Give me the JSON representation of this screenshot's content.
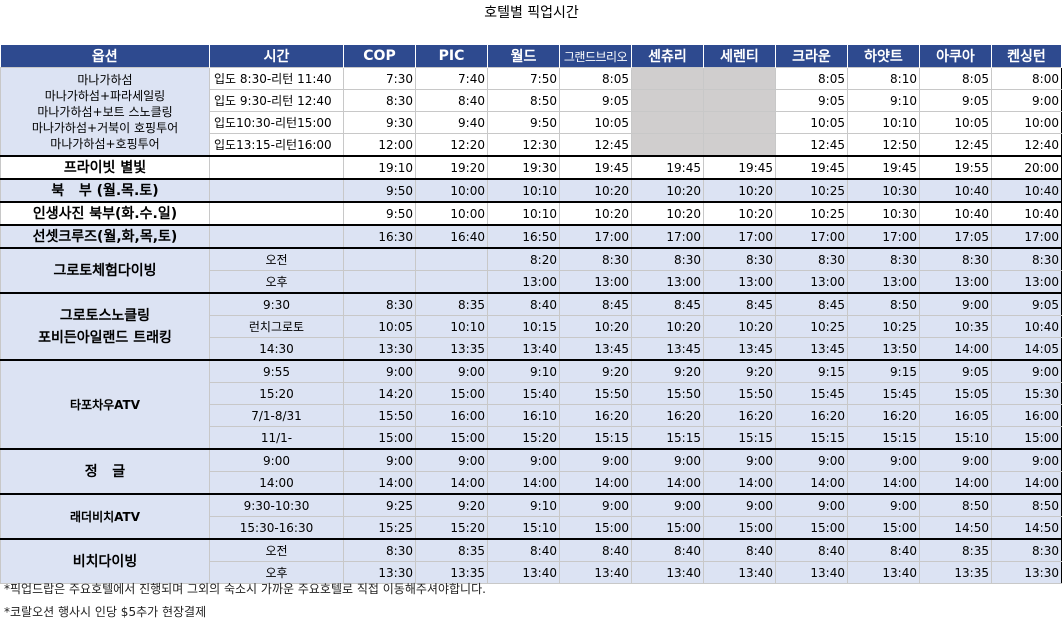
{
  "title": "호텔별 픽업시간",
  "headers": [
    "옵션",
    "시간",
    "COP",
    "PIC",
    "월드",
    "그랜드브리오",
    "센츄리",
    "세렌티",
    "크라운",
    "하얏트",
    "아쿠아",
    "켄싱턴"
  ],
  "mana": {
    "options": [
      "마나가하섬",
      "마나가하섬+파라세일링",
      "마나가하섬+보트 스노클링",
      "마나가하섬+거북이 호핑투어",
      "마나가하섬+호핑투어"
    ],
    "rows": [
      {
        "time": "입도 8:30-리턴 11:40",
        "vals": [
          "7:30",
          "7:40",
          "7:50",
          "8:05",
          "",
          "",
          "8:05",
          "8:10",
          "8:05",
          "8:00"
        ]
      },
      {
        "time": "입도 9:30-리턴 12:40",
        "vals": [
          "8:30",
          "8:40",
          "8:50",
          "9:05",
          "",
          "",
          "9:05",
          "9:10",
          "9:05",
          "9:00"
        ]
      },
      {
        "time": "입도10:30-리턴15:00",
        "vals": [
          "9:30",
          "9:40",
          "9:50",
          "10:05",
          "",
          "",
          "10:05",
          "10:10",
          "10:05",
          "10:00"
        ]
      },
      {
        "time": "입도13:15-리턴16:00",
        "vals": [
          "12:00",
          "12:20",
          "12:30",
          "12:45",
          "",
          "",
          "12:45",
          "12:50",
          "12:45",
          "12:40"
        ]
      }
    ]
  },
  "groups": [
    {
      "option": "프라이빗 별빛",
      "rows": [
        {
          "time": "",
          "vals": [
            "19:10",
            "19:20",
            "19:30",
            "19:45",
            "19:45",
            "19:45",
            "19:45",
            "19:45",
            "19:55",
            "20:00"
          ]
        }
      ]
    },
    {
      "option": "북   부 (월.목.토)",
      "rows": [
        {
          "time": "",
          "vals": [
            "9:50",
            "10:00",
            "10:10",
            "10:20",
            "10:20",
            "10:20",
            "10:25",
            "10:30",
            "10:40",
            "10:40"
          ]
        }
      ]
    },
    {
      "option": "인생사진 북부(화.수.일)",
      "rows": [
        {
          "time": "",
          "vals": [
            "9:50",
            "10:00",
            "10:10",
            "10:20",
            "10:20",
            "10:20",
            "10:25",
            "10:30",
            "10:40",
            "10:40"
          ]
        }
      ]
    },
    {
      "option": "선셋크루즈(월,화,목,토)",
      "rows": [
        {
          "time": "",
          "vals": [
            "16:30",
            "16:40",
            "16:50",
            "17:00",
            "17:00",
            "17:00",
            "17:00",
            "17:00",
            "17:05",
            "17:00"
          ]
        }
      ]
    },
    {
      "option": "그로토체험다이빙",
      "rows": [
        {
          "time": "오전",
          "vals": [
            "",
            "",
            "8:20",
            "8:30",
            "8:30",
            "8:30",
            "8:30",
            "8:30",
            "8:30",
            "8:30"
          ]
        },
        {
          "time": "오후",
          "vals": [
            "",
            "",
            "13:00",
            "13:00",
            "13:00",
            "13:00",
            "13:00",
            "13:00",
            "13:00",
            "13:00"
          ]
        }
      ]
    },
    {
      "option": "그로토스노클링\n포비든아일랜드 트래킹",
      "rows": [
        {
          "time": "9:30",
          "vals": [
            "8:30",
            "8:35",
            "8:40",
            "8:45",
            "8:45",
            "8:45",
            "8:45",
            "8:50",
            "9:00",
            "9:05"
          ]
        },
        {
          "time": "런치그로토",
          "vals": [
            "10:05",
            "10:10",
            "10:15",
            "10:20",
            "10:20",
            "10:20",
            "10:25",
            "10:25",
            "10:35",
            "10:40"
          ]
        },
        {
          "time": "14:30",
          "vals": [
            "13:30",
            "13:35",
            "13:40",
            "13:45",
            "13:45",
            "13:45",
            "13:45",
            "13:50",
            "14:00",
            "14:05"
          ]
        }
      ]
    },
    {
      "option": "타포차우ATV",
      "rows": [
        {
          "time": "9:55",
          "vals": [
            "9:00",
            "9:00",
            "9:10",
            "9:20",
            "9:20",
            "9:20",
            "9:15",
            "9:15",
            "9:05",
            "9:00"
          ]
        },
        {
          "time": "15:20",
          "vals": [
            "14:20",
            "15:00",
            "15:40",
            "15:50",
            "15:50",
            "15:50",
            "15:45",
            "15:45",
            "15:05",
            "15:30"
          ]
        },
        {
          "time": "7/1-8/31",
          "vals": [
            "15:50",
            "16:00",
            "16:10",
            "16:20",
            "16:20",
            "16:20",
            "16:20",
            "16:20",
            "16:05",
            "16:00"
          ]
        },
        {
          "time": "11/1-",
          "vals": [
            "15:00",
            "15:00",
            "15:20",
            "15:15",
            "15:15",
            "15:15",
            "15:15",
            "15:15",
            "15:10",
            "15:00"
          ]
        }
      ]
    },
    {
      "option": "정   글",
      "rows": [
        {
          "time": "9:00",
          "vals": [
            "9:00",
            "9:00",
            "9:00",
            "9:00",
            "9:00",
            "9:00",
            "9:00",
            "9:00",
            "9:00",
            "9:00"
          ]
        },
        {
          "time": "14:00",
          "vals": [
            "14:00",
            "14:00",
            "14:00",
            "14:00",
            "14:00",
            "14:00",
            "14:00",
            "14:00",
            "14:00",
            "14:00"
          ]
        }
      ]
    },
    {
      "option": "래더비치ATV",
      "rows": [
        {
          "time": "9:30-10:30",
          "vals": [
            "9:25",
            "9:20",
            "9:10",
            "9:00",
            "9:00",
            "9:00",
            "9:00",
            "9:00",
            "8:50",
            "8:50"
          ]
        },
        {
          "time": "15:30-16:30",
          "vals": [
            "15:25",
            "15:20",
            "15:10",
            "15:00",
            "15:00",
            "15:00",
            "15:00",
            "15:00",
            "14:50",
            "14:50"
          ]
        }
      ]
    },
    {
      "option": "비치다이빙",
      "rows": [
        {
          "time": "오전",
          "vals": [
            "8:30",
            "8:35",
            "8:40",
            "8:40",
            "8:40",
            "8:40",
            "8:40",
            "8:40",
            "8:35",
            "8:30"
          ]
        },
        {
          "time": "오후",
          "vals": [
            "13:30",
            "13:35",
            "13:40",
            "13:40",
            "13:40",
            "13:40",
            "13:40",
            "13:40",
            "13:35",
            "13:30"
          ]
        }
      ]
    }
  ],
  "notes": [
    "*픽업드랍은 주요호텔에서 진행되며 그외의 숙소시 가까운 주요호텔로 직접 이동해주셔야합니다.",
    "*코랄오션 행사시 인당 $5추가 현장결제"
  ]
}
